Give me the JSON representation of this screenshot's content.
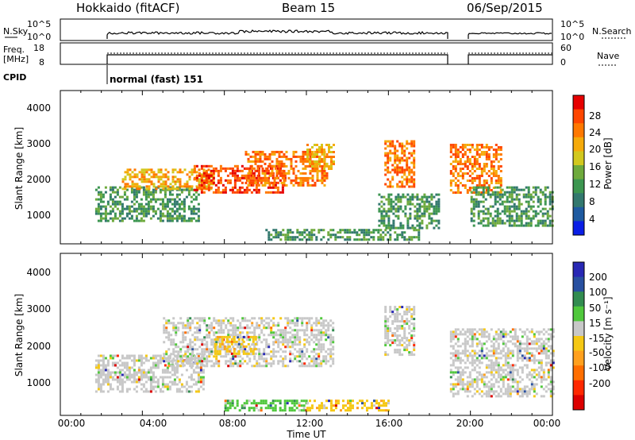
{
  "header": {
    "station": "Hokkaido (fitACF)",
    "beam": "Beam 15",
    "date": "06/Sep/2015"
  },
  "status_panels": {
    "nsky_label": "N.Sky",
    "nsky_ticks": [
      "10^5",
      "10^0"
    ],
    "nsearch_label": "N.Search",
    "nsearch_ticks": [
      "10^5",
      "10^0"
    ],
    "freq_label": [
      "Freq.",
      "[MHz]"
    ],
    "freq_ticks": [
      "18",
      "8"
    ],
    "nave_label": "Nave",
    "nave_ticks": [
      "60",
      "0"
    ],
    "cpid_label": "CPID",
    "cpid_text": "normal (fast) 151"
  },
  "colorbars": {
    "power": {
      "label": "Power [dB]",
      "ticks": [
        "28",
        "24",
        "20",
        "16",
        "12",
        "8",
        "4"
      ],
      "colors": [
        "#0a1ee6",
        "#1e5aa0",
        "#32786e",
        "#3c9650",
        "#6eaa3c",
        "#d2c81e",
        "#f5aa0a",
        "#ff7800",
        "#ff4600",
        "#e60000"
      ]
    },
    "velocity": {
      "label": "Velocity [m s⁻¹]",
      "ticks": [
        "200",
        "100",
        "50",
        "15",
        "-15",
        "-50",
        "-100",
        "-200"
      ],
      "colors": [
        "#2828b4",
        "#2850a0",
        "#328c50",
        "#50c83c",
        "#c8c8c8",
        "#f5c814",
        "#ffa01e",
        "#ff6e00",
        "#ff2800",
        "#dc0000"
      ]
    }
  },
  "chart_data": [
    {
      "type": "heatmap",
      "panel": "power",
      "ylabel": "Slant Range [km]",
      "ylim": [
        180,
        4500
      ],
      "y_ticks": [
        "4000",
        "3000",
        "2000",
        "1000"
      ],
      "xlim": [
        0,
        24
      ],
      "note": "range-time-intensity map; approximate echo regions in UT hours and km",
      "regions": [
        {
          "t0": 1.7,
          "t1": 6.8,
          "r0": 800,
          "r1": 1800,
          "level": "12"
        },
        {
          "t0": 3.0,
          "t1": 7.5,
          "r0": 1700,
          "r1": 2300,
          "level": "20"
        },
        {
          "t0": 6.5,
          "t1": 11.0,
          "r0": 1600,
          "r1": 2400,
          "level": "28"
        },
        {
          "t0": 9.0,
          "t1": 13.0,
          "r0": 1800,
          "r1": 2800,
          "level": "24"
        },
        {
          "t0": 12.0,
          "t1": 13.3,
          "r0": 2300,
          "r1": 3000,
          "level": "20"
        },
        {
          "t0": 15.8,
          "t1": 17.3,
          "r0": 1800,
          "r1": 3100,
          "level": "24"
        },
        {
          "t0": 15.5,
          "t1": 18.5,
          "r0": 600,
          "r1": 1600,
          "level": "12"
        },
        {
          "t0": 19.0,
          "t1": 21.5,
          "r0": 1600,
          "r1": 3000,
          "level": "24"
        },
        {
          "t0": 20.0,
          "t1": 24.0,
          "r0": 700,
          "r1": 1800,
          "level": "12"
        },
        {
          "t0": 10.0,
          "t1": 17.5,
          "r0": 300,
          "r1": 600,
          "level": "12"
        }
      ]
    },
    {
      "type": "heatmap",
      "panel": "velocity",
      "ylabel": "Slant Range [km]",
      "ylim": [
        180,
        4500
      ],
      "y_ticks": [
        "4000",
        "3000",
        "2000",
        "1000"
      ],
      "xlim": [
        0,
        24
      ],
      "xlabel": "Time UT",
      "x_ticks": [
        "00:00",
        "04:00",
        "08:00",
        "12:00",
        "16:00",
        "20:00",
        "00:00"
      ],
      "regions": [
        {
          "t0": 1.7,
          "t1": 7.0,
          "r0": 800,
          "r1": 1800,
          "level": "-15"
        },
        {
          "t0": 5.0,
          "t1": 13.3,
          "r0": 1500,
          "r1": 2800,
          "level": "-15"
        },
        {
          "t0": 7.5,
          "t1": 9.5,
          "r0": 1800,
          "r1": 2300,
          "level": "-50"
        },
        {
          "t0": 15.8,
          "t1": 17.3,
          "r0": 1800,
          "r1": 3100,
          "level": "-15"
        },
        {
          "t0": 19.0,
          "t1": 24.0,
          "r0": 700,
          "r1": 2500,
          "level": "-15"
        },
        {
          "t0": 8.0,
          "t1": 12.0,
          "r0": 300,
          "r1": 600,
          "level": "50"
        },
        {
          "t0": 12.0,
          "t1": 16.0,
          "r0": 300,
          "r1": 600,
          "level": "-50"
        }
      ]
    }
  ]
}
